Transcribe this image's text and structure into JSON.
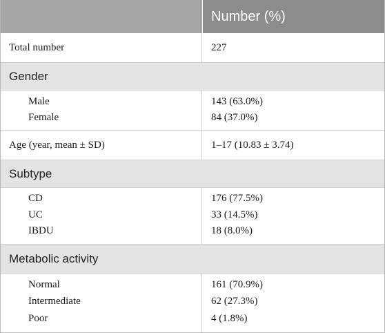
{
  "header": {
    "col1": "",
    "col2": "Number (%)"
  },
  "rows": {
    "total": {
      "label": "Total number",
      "value": "227"
    },
    "gender": {
      "section": "Gender",
      "items": [
        {
          "label": "Male",
          "value": "143 (63.0%)"
        },
        {
          "label": "Female",
          "value": "84 (37.0%)"
        }
      ]
    },
    "age": {
      "label": "Age (year, mean ± SD)",
      "value": "1–17 (10.83 ± 3.74)"
    },
    "subtype": {
      "section": "Subtype",
      "items": [
        {
          "label": "CD",
          "value": "176 (77.5%)"
        },
        {
          "label": "UC",
          "value": "33 (14.5%)"
        },
        {
          "label": "IBDU",
          "value": "18 (8.0%)"
        }
      ]
    },
    "metabolic": {
      "section": "Metabolic activity",
      "items": [
        {
          "label": "Normal",
          "value": "161 (70.9%)"
        },
        {
          "label": "Intermediate",
          "value": "62 (27.3%)"
        },
        {
          "label": "Poor",
          "value": "4 (1.8%)"
        }
      ]
    }
  }
}
